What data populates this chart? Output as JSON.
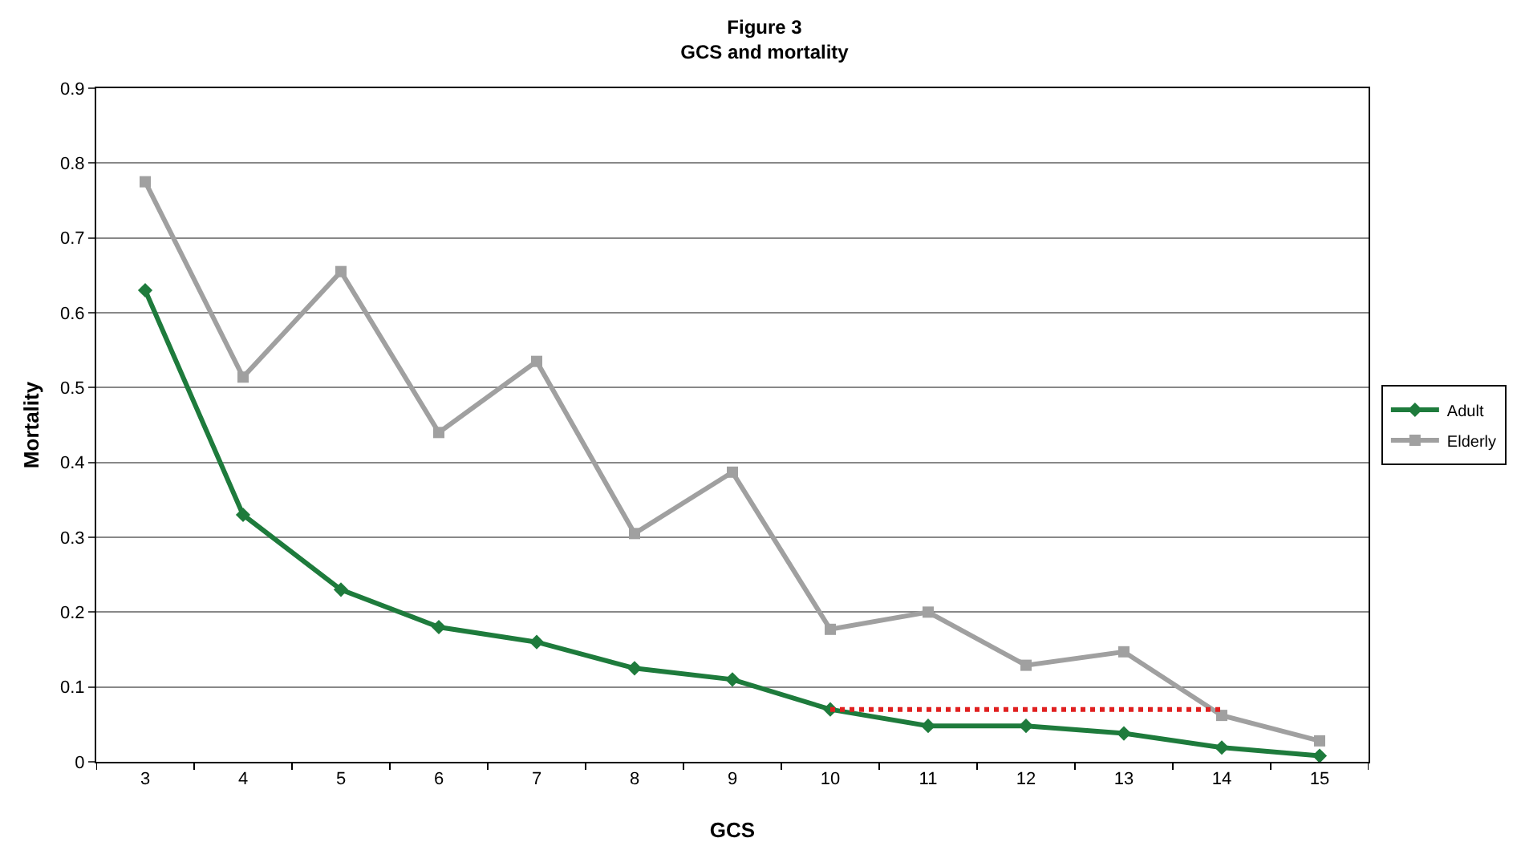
{
  "chart_data": {
    "type": "line",
    "title": "Figure 3",
    "subtitle": "GCS and mortality",
    "xlabel": "GCS",
    "ylabel": "Mortality",
    "categories": [
      "3",
      "4",
      "5",
      "6",
      "7",
      "8",
      "9",
      "10",
      "11",
      "12",
      "13",
      "14",
      "15"
    ],
    "series": [
      {
        "name": "Adult",
        "color": "#1e7b3c",
        "marker": "diamond",
        "values": [
          0.63,
          0.33,
          0.23,
          0.18,
          0.16,
          0.125,
          0.11,
          0.07,
          0.048,
          0.048,
          0.038,
          0.019,
          0.008
        ]
      },
      {
        "name": "Elderly",
        "color": "#a0a0a0",
        "marker": "square",
        "values": [
          0.775,
          0.514,
          0.655,
          0.44,
          0.535,
          0.305,
          0.387,
          0.177,
          0.2,
          0.129,
          0.147,
          0.062,
          0.028
        ]
      },
      {
        "color": "#e02020",
        "marker": "none",
        "line_style": "dotted",
        "values": [
          null,
          null,
          null,
          null,
          null,
          null,
          null,
          0.07,
          0.07,
          0.07,
          0.07,
          0.07,
          null
        ]
      }
    ],
    "ylim": [
      0,
      0.9
    ],
    "yticks": [
      0,
      0.1,
      0.2,
      0.3,
      0.4,
      0.5,
      0.6,
      0.7,
      0.8,
      0.9
    ],
    "grid": "y",
    "legend": "right",
    "line_style": "solid"
  }
}
